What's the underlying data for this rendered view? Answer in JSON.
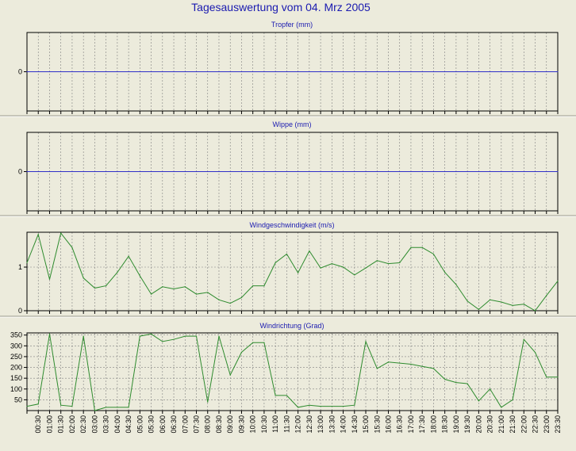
{
  "page": {
    "title": "Tagesauswertung vom 04. Mrz 2005"
  },
  "colors": {
    "background": "#ecebdc",
    "title": "#1a1ab0",
    "zero_line": "#3030c8",
    "series": "#2e8b2e",
    "grid": "#808080",
    "frame": "#000000"
  },
  "time_labels": [
    "00:30",
    "01:00",
    "01:30",
    "02:00",
    "02:30",
    "03:00",
    "03:30",
    "04:00",
    "04:30",
    "05:00",
    "05:30",
    "06:00",
    "06:30",
    "07:00",
    "07:30",
    "08:00",
    "08:30",
    "09:00",
    "09:30",
    "10:00",
    "10:30",
    "11:00",
    "11:30",
    "12:00",
    "12:30",
    "13:00",
    "13:30",
    "14:00",
    "14:30",
    "15:00",
    "15:30",
    "16:00",
    "16:30",
    "17:00",
    "17:30",
    "18:00",
    "18:30",
    "19:00",
    "19:30",
    "20:00",
    "20:30",
    "21:00",
    "21:30",
    "22:00",
    "22:30",
    "23:00",
    "23:30"
  ],
  "chart_data": [
    {
      "type": "line",
      "title": "Tropfer (mm)",
      "xlabel": "",
      "ylabel": "",
      "ylim": [
        -1,
        1
      ],
      "yticks": [
        "0"
      ],
      "grid": true,
      "series": [
        {
          "values": [
            0,
            0,
            0,
            0,
            0,
            0,
            0,
            0,
            0,
            0,
            0,
            0,
            0,
            0,
            0,
            0,
            0,
            0,
            0,
            0,
            0,
            0,
            0,
            0,
            0,
            0,
            0,
            0,
            0,
            0,
            0,
            0,
            0,
            0,
            0,
            0,
            0,
            0,
            0,
            0,
            0,
            0,
            0,
            0,
            0,
            0,
            0,
            0
          ]
        }
      ]
    },
    {
      "type": "line",
      "title": "Wippe (mm)",
      "xlabel": "",
      "ylabel": "",
      "ylim": [
        -1,
        1
      ],
      "yticks": [
        "0"
      ],
      "grid": true,
      "series": [
        {
          "values": [
            0,
            0,
            0,
            0,
            0,
            0,
            0,
            0,
            0,
            0,
            0,
            0,
            0,
            0,
            0,
            0,
            0,
            0,
            0,
            0,
            0,
            0,
            0,
            0,
            0,
            0,
            0,
            0,
            0,
            0,
            0,
            0,
            0,
            0,
            0,
            0,
            0,
            0,
            0,
            0,
            0,
            0,
            0,
            0,
            0,
            0,
            0,
            0
          ]
        }
      ]
    },
    {
      "type": "line",
      "title": "Windgeschwindigkeit (m/s)",
      "xlabel": "",
      "ylabel": "",
      "ylim": [
        0,
        1.8
      ],
      "yticks": [
        "0",
        "1"
      ],
      "ytick_values": [
        0,
        1
      ],
      "grid": true,
      "series": [
        {
          "values": [
            1.1,
            1.75,
            0.72,
            1.78,
            1.45,
            0.75,
            0.52,
            0.57,
            0.88,
            1.25,
            0.8,
            0.38,
            0.55,
            0.5,
            0.55,
            0.38,
            0.42,
            0.25,
            0.17,
            0.3,
            0.57,
            0.57,
            1.1,
            1.3,
            0.87,
            1.37,
            0.98,
            1.08,
            1.0,
            0.82,
            0.98,
            1.15,
            1.08,
            1.1,
            1.45,
            1.45,
            1.3,
            0.88,
            0.6,
            0.22,
            0.03,
            0.25,
            0.2,
            0.12,
            0.15,
            0.0,
            0.35,
            0.68
          ]
        }
      ]
    },
    {
      "type": "line",
      "title": "Windrichtung (Grad)",
      "xlabel": "",
      "ylabel": "",
      "ylim": [
        0,
        360
      ],
      "yticks": [
        "50",
        "100",
        "150",
        "200",
        "250",
        "300",
        "350"
      ],
      "ytick_values": [
        50,
        100,
        150,
        200,
        250,
        300,
        350
      ],
      "grid": true,
      "series": [
        {
          "values": [
            20,
            30,
            355,
            25,
            20,
            345,
            0,
            15,
            15,
            15,
            345,
            355,
            320,
            330,
            345,
            345,
            40,
            345,
            165,
            270,
            315,
            315,
            70,
            70,
            15,
            25,
            20,
            20,
            20,
            25,
            320,
            195,
            225,
            220,
            215,
            205,
            195,
            145,
            130,
            125,
            45,
            100,
            15,
            50,
            330,
            270,
            155,
            155
          ]
        }
      ]
    }
  ]
}
